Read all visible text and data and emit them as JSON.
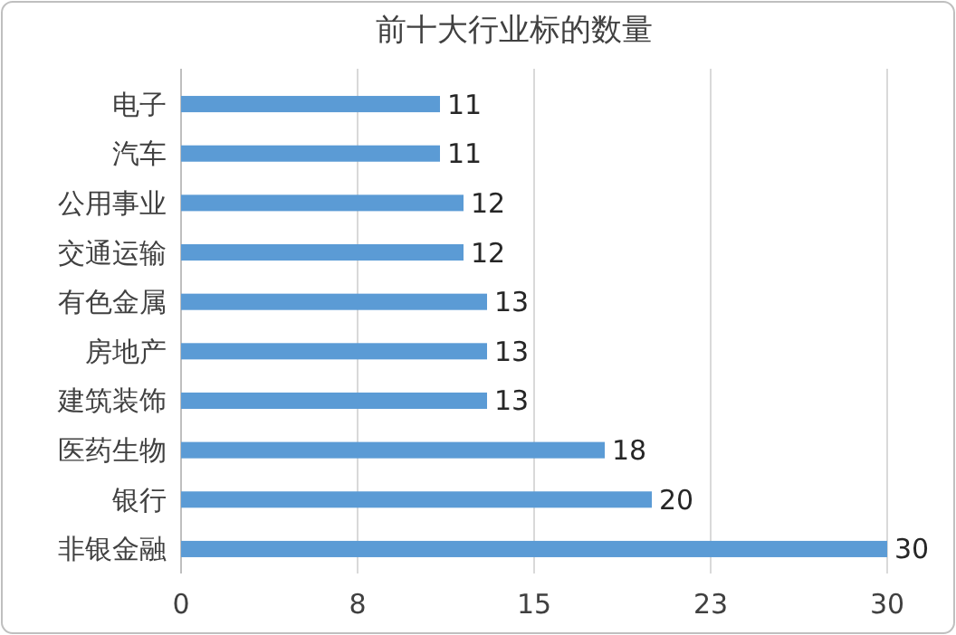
{
  "chart_data": {
    "type": "bar",
    "orientation": "horizontal",
    "title": "前十大行业标的数量",
    "categories": [
      "电子",
      "汽车",
      "公用事业",
      "交通运输",
      "有色金属",
      "房地产",
      "建筑装饰",
      "医药生物",
      "银行",
      "非银金融"
    ],
    "values": [
      11,
      11,
      12,
      12,
      13,
      13,
      13,
      18,
      20,
      30
    ],
    "color": "#5b9bd5",
    "xlim": [
      0,
      30
    ],
    "xticks": [
      0,
      {
        "value": 7.5,
        "label": "8"
      },
      15,
      {
        "value": 22.5,
        "label": "23"
      },
      30
    ],
    "grid": "x",
    "data_labels": true
  }
}
